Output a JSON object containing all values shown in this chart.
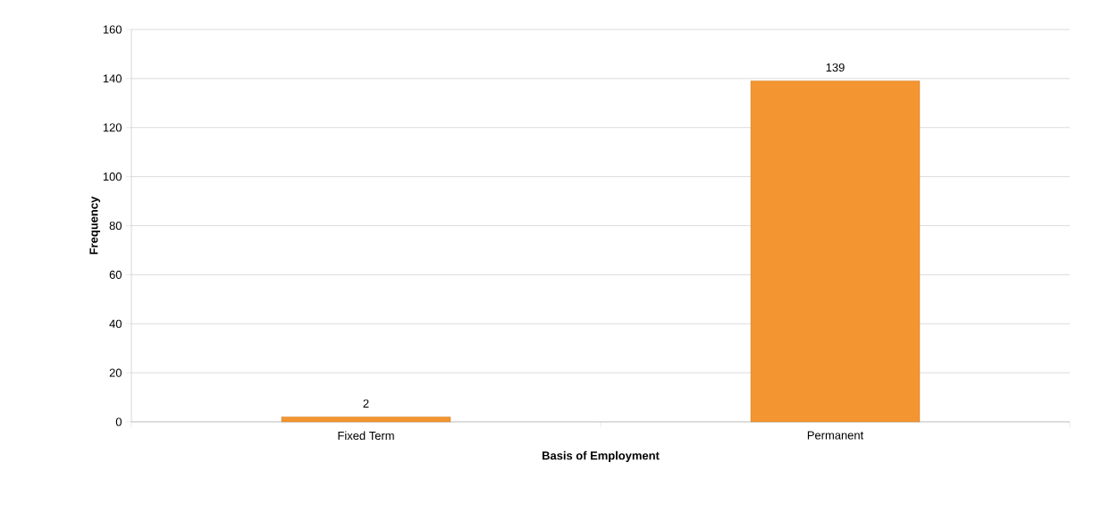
{
  "chart_data": {
    "type": "bar",
    "xlabel": "Basis of Employment",
    "ylabel": "Frequency",
    "categories": [
      "Fixed Term",
      "Permanent"
    ],
    "values": [
      2,
      139
    ],
    "color": "#f39530",
    "ylim": [
      0,
      160
    ],
    "yticks": [
      0,
      20,
      40,
      60,
      80,
      100,
      120,
      140,
      160
    ],
    "grid": "y",
    "data_labels": true
  }
}
